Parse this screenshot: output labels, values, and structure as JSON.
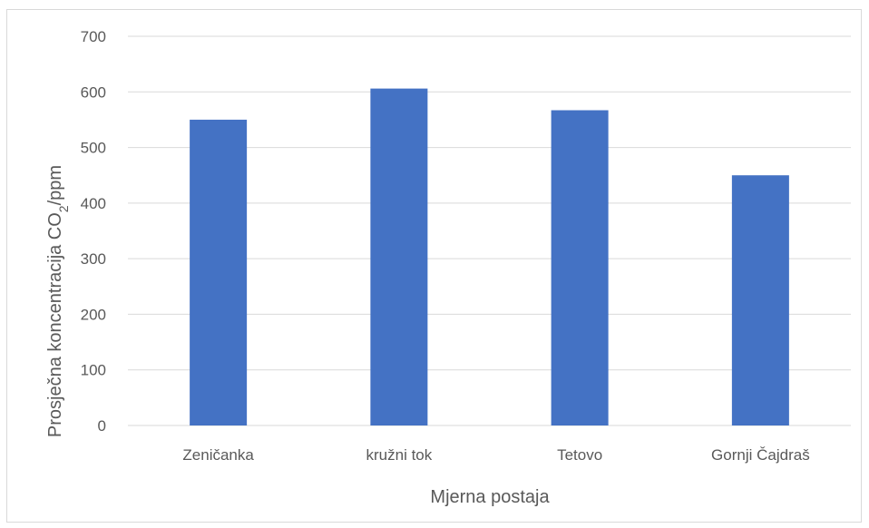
{
  "chart_data": {
    "type": "bar",
    "categories": [
      "Zeničanka",
      "kružni tok",
      "Tetovo",
      "Gornji Čajdraš"
    ],
    "values": [
      550,
      606,
      567,
      450
    ],
    "xlabel": "Mjerna postaja",
    "ylabel_prefix": "Prosječna koncentracija CO",
    "ylabel_subscript": "2",
    "ylabel_suffix": "/ppm",
    "ylim": [
      0,
      700
    ],
    "yticks": [
      0,
      100,
      200,
      300,
      400,
      500,
      600,
      700
    ],
    "grid": true,
    "bar_color": "#4472c4",
    "grid_color": "#d9d9d9"
  }
}
